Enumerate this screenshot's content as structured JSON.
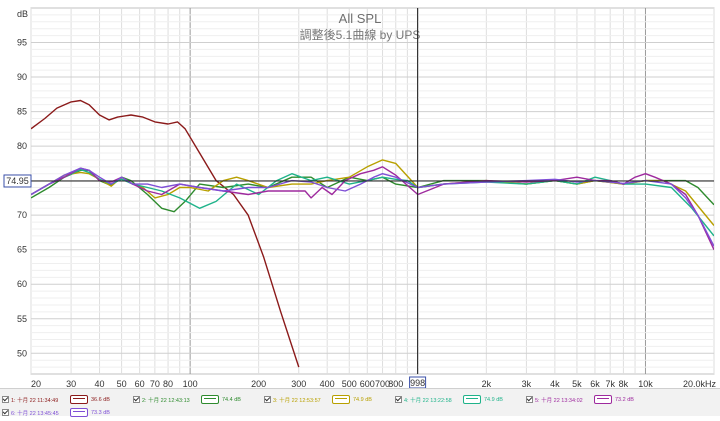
{
  "chart_data": {
    "type": "line",
    "title": "All SPL",
    "subtitle": "調整後5.1曲線 by UPS",
    "ylabel": "dB",
    "xunit": "Hz",
    "xscale": "log",
    "xlim": [
      20,
      20000
    ],
    "ylim": [
      47,
      100
    ],
    "grid": true,
    "x_ticks": [
      {
        "v": 20,
        "label": "20"
      },
      {
        "v": 30,
        "label": "30"
      },
      {
        "v": 40,
        "label": "40"
      },
      {
        "v": 50,
        "label": "50"
      },
      {
        "v": 60,
        "label": "60"
      },
      {
        "v": 70,
        "label": "70"
      },
      {
        "v": 80,
        "label": "80"
      },
      {
        "v": 100,
        "label": "100"
      },
      {
        "v": 200,
        "label": "200"
      },
      {
        "v": 300,
        "label": "300"
      },
      {
        "v": 400,
        "label": "400"
      },
      {
        "v": 500,
        "label": "500"
      },
      {
        "v": 600,
        "label": "600"
      },
      {
        "v": 700,
        "label": "700"
      },
      {
        "v": 800,
        "label": "800"
      },
      {
        "v": 2000,
        "label": "2k"
      },
      {
        "v": 3000,
        "label": "3k"
      },
      {
        "v": 4000,
        "label": "4k"
      },
      {
        "v": 5000,
        "label": "5k"
      },
      {
        "v": 6000,
        "label": "6k"
      },
      {
        "v": 7000,
        "label": "7k"
      },
      {
        "v": 8000,
        "label": "8k"
      },
      {
        "v": 10000,
        "label": "10k"
      },
      {
        "v": 20000,
        "label": "20.0kHz"
      }
    ],
    "y_ticks": [
      {
        "v": 95,
        "label": "95"
      },
      {
        "v": 90,
        "label": "90"
      },
      {
        "v": 85,
        "label": "85"
      },
      {
        "v": 80,
        "label": "80"
      },
      {
        "v": 75,
        "label": "75"
      },
      {
        "v": 70,
        "label": "70"
      },
      {
        "v": 65,
        "label": "65"
      },
      {
        "v": 60,
        "label": "60"
      },
      {
        "v": 55,
        "label": "55"
      },
      {
        "v": 50,
        "label": "50"
      }
    ],
    "cursor": {
      "x": 998,
      "x_label": "998",
      "y": 74.95,
      "y_label": "74.95"
    },
    "series": [
      {
        "name": "1: 十月 22 11:34:49",
        "value": "36.6 dB",
        "color": "#8b1a1a",
        "points": [
          [
            20,
            82.5
          ],
          [
            23,
            84
          ],
          [
            26,
            85.5
          ],
          [
            30,
            86.4
          ],
          [
            33,
            86.6
          ],
          [
            36,
            86
          ],
          [
            40,
            84.5
          ],
          [
            44,
            83.8
          ],
          [
            48,
            84.2
          ],
          [
            55,
            84.5
          ],
          [
            62,
            84.2
          ],
          [
            70,
            83.5
          ],
          [
            80,
            83.2
          ],
          [
            88,
            83.5
          ],
          [
            95,
            82.5
          ],
          [
            110,
            79
          ],
          [
            130,
            75
          ],
          [
            155,
            73
          ],
          [
            180,
            70
          ],
          [
            210,
            64
          ],
          [
            250,
            56
          ],
          [
            300,
            48
          ]
        ]
      },
      {
        "name": "2: 十月 22 12:43:13",
        "value": "74.4 dB",
        "color": "#2e8b2e",
        "points": [
          [
            20,
            72.5
          ],
          [
            24,
            74
          ],
          [
            28,
            75.5
          ],
          [
            33,
            76.5
          ],
          [
            36,
            76.5
          ],
          [
            40,
            75
          ],
          [
            45,
            74.3
          ],
          [
            50,
            75.5
          ],
          [
            55,
            75
          ],
          [
            65,
            73
          ],
          [
            75,
            71
          ],
          [
            85,
            70.5
          ],
          [
            95,
            72
          ],
          [
            110,
            74.5
          ],
          [
            140,
            74
          ],
          [
            180,
            74.5
          ],
          [
            220,
            74
          ],
          [
            280,
            75.5
          ],
          [
            340,
            75.5
          ],
          [
            400,
            74
          ],
          [
            500,
            75.5
          ],
          [
            600,
            75
          ],
          [
            700,
            75.5
          ],
          [
            800,
            74.5
          ],
          [
            1000,
            74
          ],
          [
            1300,
            75
          ],
          [
            2000,
            75
          ],
          [
            3000,
            74.5
          ],
          [
            4000,
            75
          ],
          [
            5000,
            74.5
          ],
          [
            6000,
            75
          ],
          [
            8000,
            74.5
          ],
          [
            10000,
            75
          ],
          [
            13000,
            75
          ],
          [
            15000,
            75
          ],
          [
            17000,
            74
          ],
          [
            20000,
            71.5
          ]
        ]
      },
      {
        "name": "3: 十月 22 12:53:57",
        "value": "74.9 dB",
        "color": "#b8a000",
        "points": [
          [
            20,
            73
          ],
          [
            24,
            74.5
          ],
          [
            28,
            75.8
          ],
          [
            33,
            76.2
          ],
          [
            36,
            76
          ],
          [
            40,
            75.2
          ],
          [
            45,
            74.2
          ],
          [
            50,
            75.5
          ],
          [
            56,
            74.5
          ],
          [
            62,
            74
          ],
          [
            70,
            72.5
          ],
          [
            80,
            73
          ],
          [
            90,
            74
          ],
          [
            100,
            74
          ],
          [
            120,
            73.5
          ],
          [
            140,
            75
          ],
          [
            160,
            75.5
          ],
          [
            180,
            75
          ],
          [
            220,
            74
          ],
          [
            280,
            74.5
          ],
          [
            340,
            74.5
          ],
          [
            400,
            75
          ],
          [
            500,
            75.5
          ],
          [
            600,
            77
          ],
          [
            700,
            78
          ],
          [
            800,
            77.5
          ],
          [
            1000,
            74
          ],
          [
            1300,
            74.5
          ],
          [
            2000,
            75
          ],
          [
            3000,
            74.5
          ],
          [
            4000,
            75
          ],
          [
            5000,
            74.5
          ],
          [
            6000,
            75
          ],
          [
            8000,
            74.5
          ],
          [
            10000,
            75
          ],
          [
            12000,
            75
          ],
          [
            15000,
            73.5
          ],
          [
            20000,
            68.5
          ]
        ]
      },
      {
        "name": "4: 十月 22 13:22:58",
        "value": "74.9 dB",
        "color": "#1fb38a",
        "points": [
          [
            20,
            73
          ],
          [
            24,
            74.5
          ],
          [
            28,
            75.5
          ],
          [
            33,
            76.6
          ],
          [
            36,
            76.2
          ],
          [
            40,
            75.2
          ],
          [
            45,
            74.5
          ],
          [
            50,
            75.2
          ],
          [
            56,
            74.5
          ],
          [
            65,
            74
          ],
          [
            75,
            73.5
          ],
          [
            90,
            72.5
          ],
          [
            110,
            71
          ],
          [
            130,
            72
          ],
          [
            160,
            74.5
          ],
          [
            200,
            73
          ],
          [
            240,
            75
          ],
          [
            280,
            76
          ],
          [
            340,
            75
          ],
          [
            400,
            75.5
          ],
          [
            500,
            74.5
          ],
          [
            600,
            75
          ],
          [
            700,
            75.5
          ],
          [
            800,
            75.2
          ],
          [
            900,
            75
          ],
          [
            1000,
            74
          ],
          [
            1300,
            74.5
          ],
          [
            2000,
            74.8
          ],
          [
            3000,
            74.5
          ],
          [
            4000,
            75
          ],
          [
            5000,
            74.5
          ],
          [
            6000,
            75.5
          ],
          [
            7000,
            75
          ],
          [
            8000,
            74.5
          ],
          [
            10000,
            74.5
          ],
          [
            13000,
            74
          ],
          [
            16000,
            71
          ],
          [
            20000,
            67
          ]
        ]
      },
      {
        "name": "5: 十月 22 13:34:02",
        "value": "73.2 dB",
        "color": "#9e2a9e",
        "points": [
          [
            20,
            73
          ],
          [
            24,
            74.5
          ],
          [
            28,
            75.5
          ],
          [
            33,
            76.8
          ],
          [
            36,
            76.5
          ],
          [
            40,
            75
          ],
          [
            45,
            74.8
          ],
          [
            50,
            75.5
          ],
          [
            56,
            74.5
          ],
          [
            65,
            73.5
          ],
          [
            75,
            73
          ],
          [
            90,
            74.5
          ],
          [
            110,
            74
          ],
          [
            140,
            73.5
          ],
          [
            180,
            73
          ],
          [
            220,
            73.5
          ],
          [
            280,
            73.5
          ],
          [
            320,
            73.5
          ],
          [
            340,
            72.5
          ],
          [
            380,
            74
          ],
          [
            420,
            73
          ],
          [
            480,
            75
          ],
          [
            560,
            76
          ],
          [
            640,
            76.5
          ],
          [
            700,
            77
          ],
          [
            800,
            75.8
          ],
          [
            1000,
            73
          ],
          [
            1300,
            74.5
          ],
          [
            2000,
            75
          ],
          [
            3000,
            74.8
          ],
          [
            4000,
            75
          ],
          [
            5000,
            75.5
          ],
          [
            6000,
            75
          ],
          [
            7000,
            75
          ],
          [
            8000,
            74.5
          ],
          [
            9000,
            75.5
          ],
          [
            10000,
            76
          ],
          [
            11000,
            75.5
          ],
          [
            13000,
            74.5
          ],
          [
            15000,
            73
          ],
          [
            17000,
            70
          ],
          [
            20000,
            65
          ]
        ]
      },
      {
        "name": "6: 十月 22 13:45:45",
        "value": "73.3 dB",
        "color": "#7f4fd6",
        "points": [
          [
            20,
            73
          ],
          [
            24,
            74.5
          ],
          [
            28,
            75.8
          ],
          [
            33,
            76.8
          ],
          [
            36,
            76.5
          ],
          [
            40,
            75.5
          ],
          [
            45,
            74.5
          ],
          [
            50,
            75.5
          ],
          [
            56,
            74.5
          ],
          [
            65,
            74.5
          ],
          [
            75,
            74
          ],
          [
            90,
            74.5
          ],
          [
            110,
            74
          ],
          [
            140,
            73.5
          ],
          [
            180,
            74
          ],
          [
            220,
            74
          ],
          [
            280,
            75
          ],
          [
            340,
            74.8
          ],
          [
            400,
            74
          ],
          [
            480,
            73.5
          ],
          [
            560,
            74.5
          ],
          [
            640,
            75.5
          ],
          [
            700,
            76
          ],
          [
            800,
            75.5
          ],
          [
            1000,
            74
          ],
          [
            1300,
            74.5
          ],
          [
            2000,
            74.8
          ],
          [
            3000,
            75
          ],
          [
            4000,
            75.2
          ],
          [
            5000,
            74.8
          ],
          [
            6000,
            75
          ],
          [
            8000,
            74.6
          ],
          [
            10000,
            75
          ],
          [
            13000,
            74.5
          ],
          [
            15000,
            72.5
          ],
          [
            17000,
            70
          ],
          [
            20000,
            65.5
          ]
        ]
      }
    ]
  }
}
